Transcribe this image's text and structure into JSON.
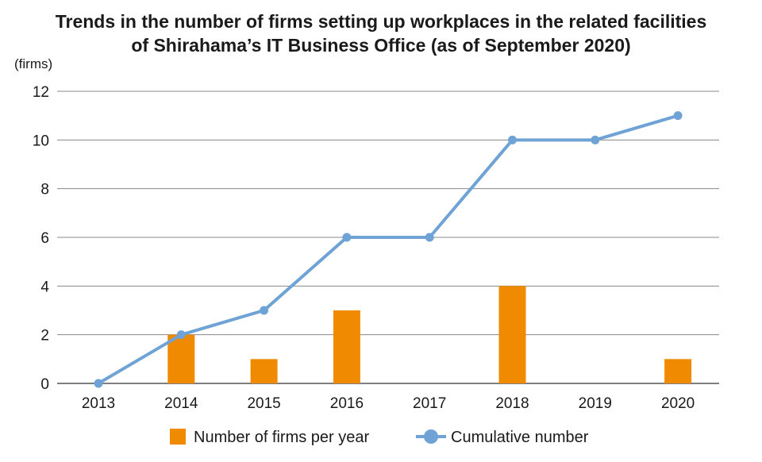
{
  "chart_data": {
    "type": "bar+line",
    "title_lines": [
      "Trends in the number of firms setting up workplaces in the related facilities",
      "of Shirahama’s IT Business Office (as of September 2020)"
    ],
    "ylabel": "(firms)",
    "xlabel": "",
    "ylim": [
      0,
      12
    ],
    "yticks": [
      0,
      2,
      4,
      6,
      8,
      10,
      12
    ],
    "categories": [
      "2013",
      "2014",
      "2015",
      "2016",
      "2017",
      "2018",
      "2019",
      "2020"
    ],
    "series": [
      {
        "name": "Number of firms per year",
        "type": "bar",
        "color": "#F08A00",
        "values": [
          0,
          2,
          1,
          3,
          0,
          4,
          0,
          1
        ]
      },
      {
        "name": "Cumulative number",
        "type": "line",
        "color": "#6FA3D6",
        "values": [
          0,
          2,
          3,
          6,
          6,
          10,
          10,
          11
        ]
      }
    ],
    "grid": true,
    "legend": "bottom-center"
  }
}
